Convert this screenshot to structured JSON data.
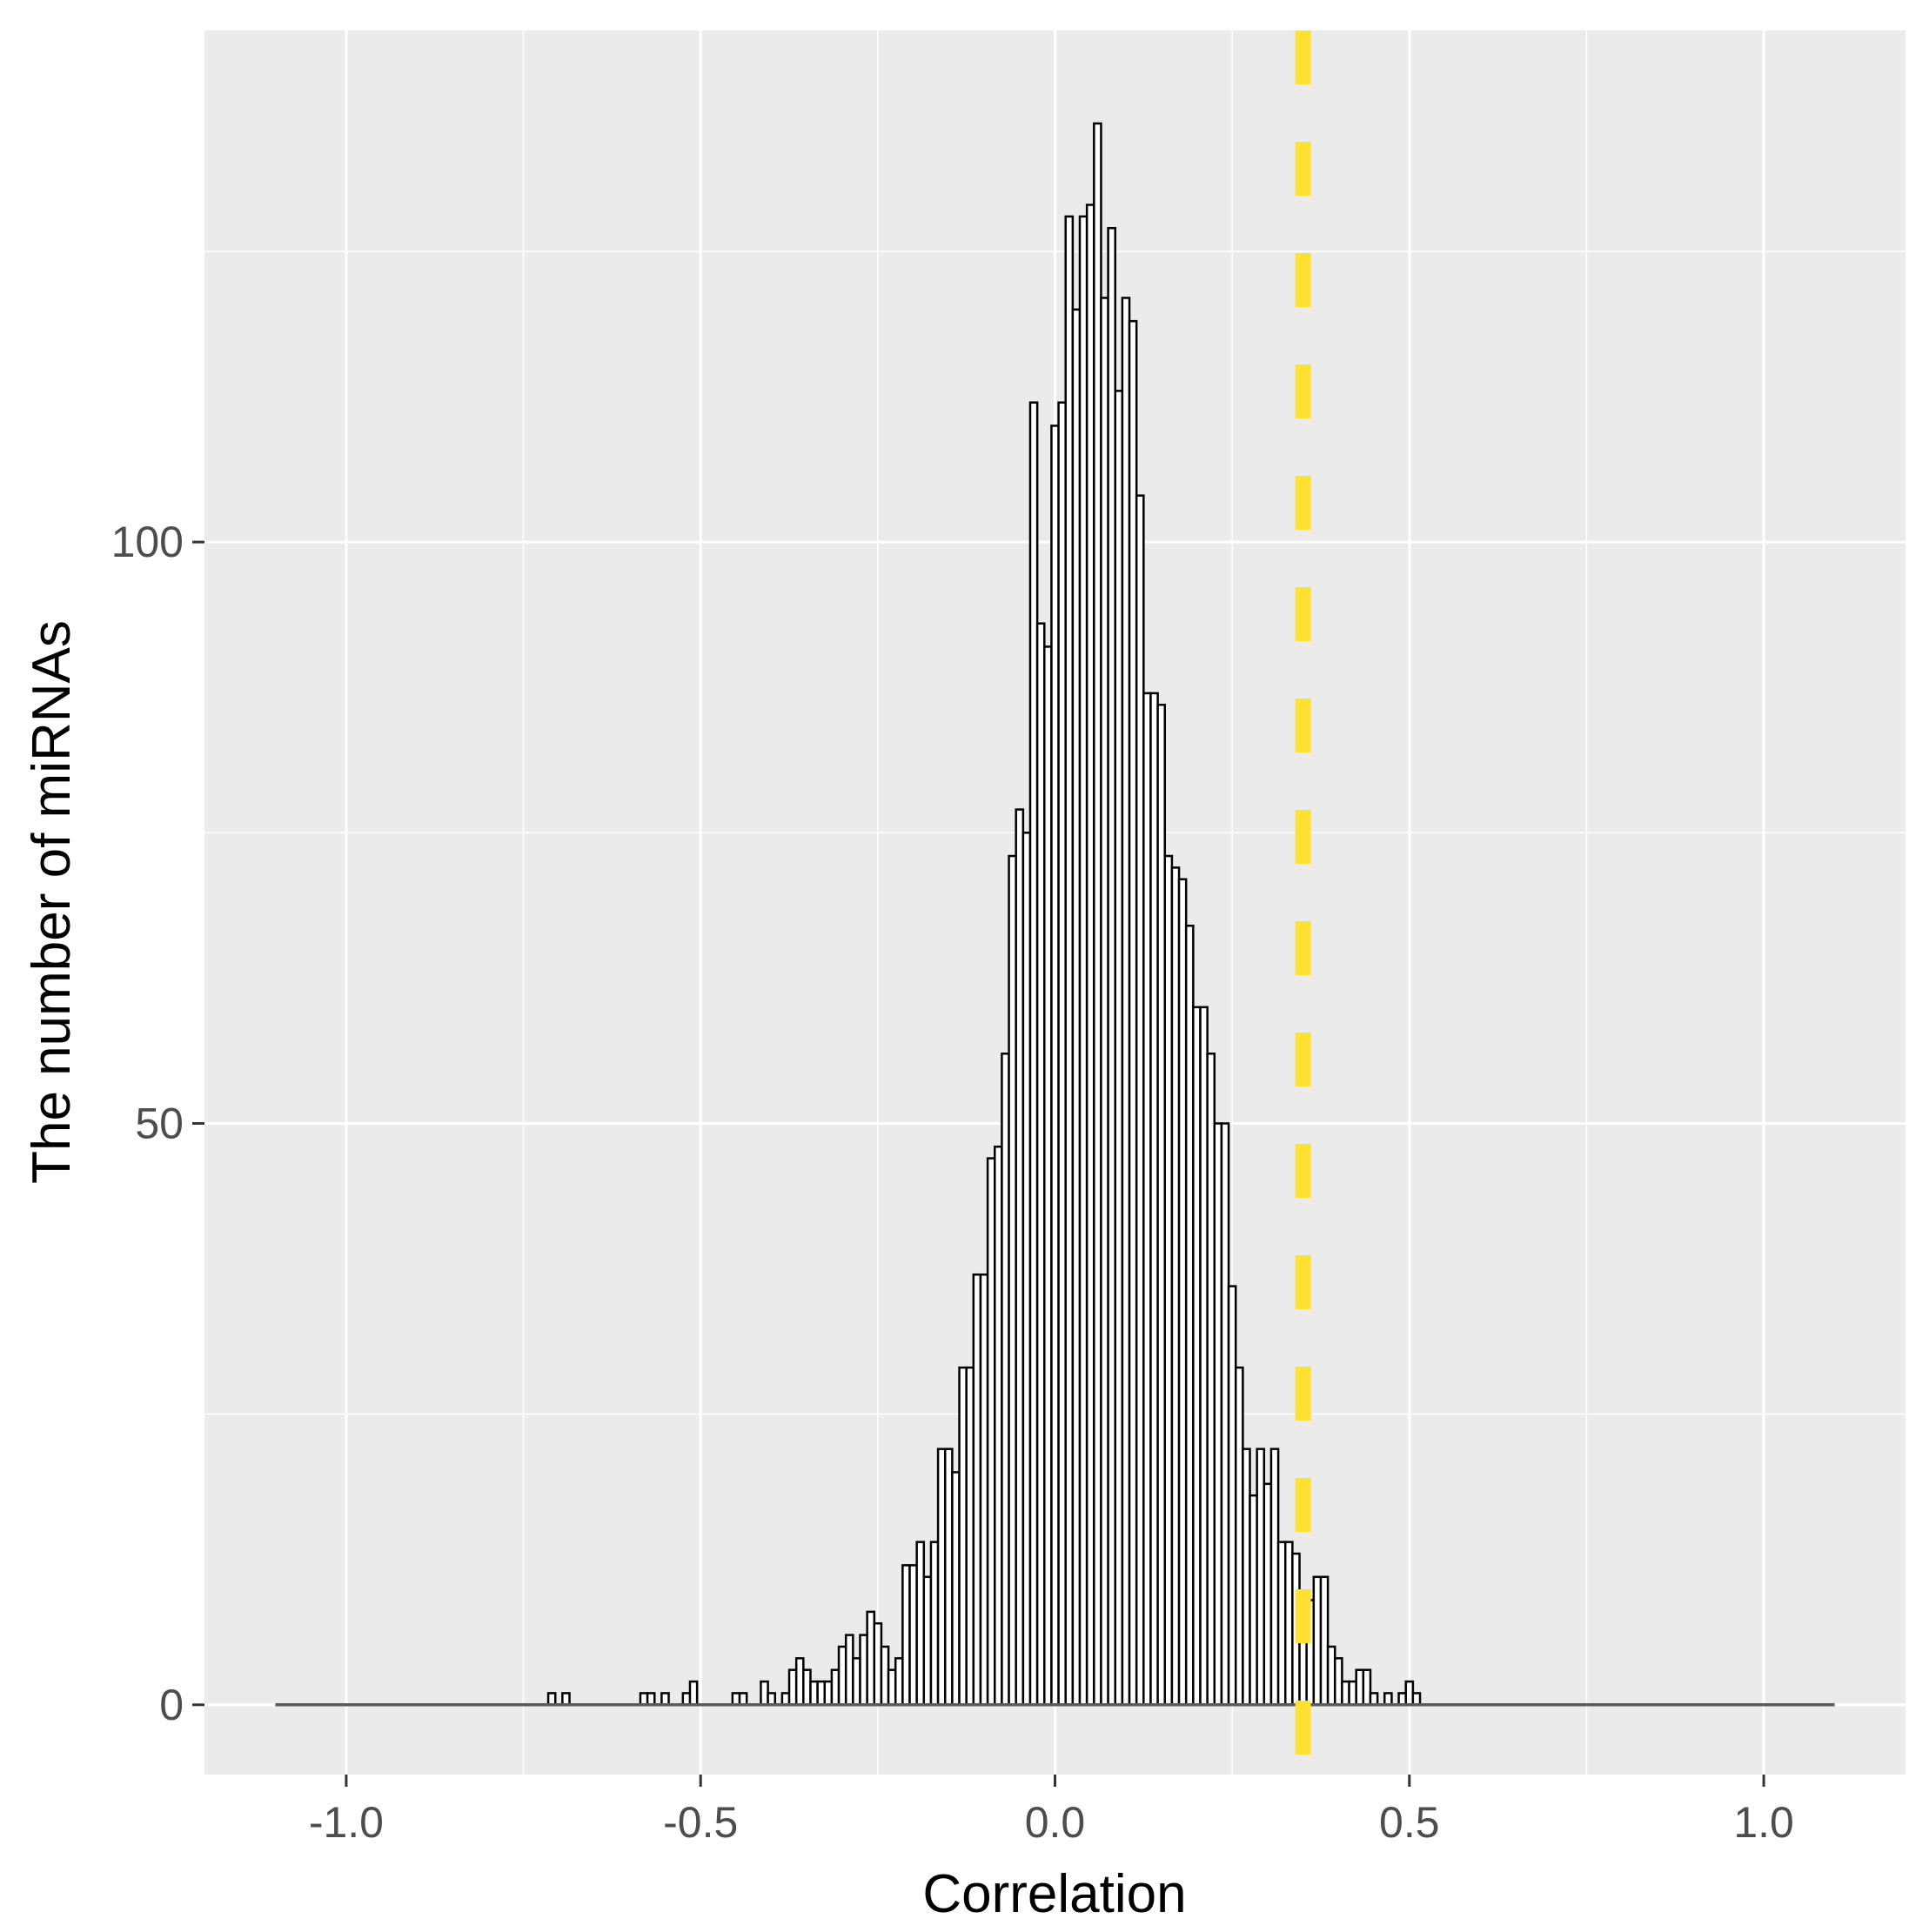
{
  "chart_data": {
    "type": "bar",
    "xlabel": "Correlation",
    "ylabel": "The number of miRNAs",
    "xlim": [
      -1.2,
      1.2
    ],
    "ylim": [
      -6,
      144
    ],
    "x_ticks": [
      -1.0,
      -0.5,
      0.0,
      0.5,
      1.0
    ],
    "x_tick_labels": [
      "-1.0",
      "-0.5",
      "0.0",
      "0.5",
      "1.0"
    ],
    "y_ticks": [
      0,
      50,
      100
    ],
    "y_tick_labels": [
      "0",
      "50",
      "100"
    ],
    "grid": true,
    "bin_width": 0.01,
    "bin_range": [
      -1.1,
      1.1
    ],
    "bins": [
      {
        "x": -0.71,
        "count": 1
      },
      {
        "x": -0.69,
        "count": 1
      },
      {
        "x": -0.58,
        "count": 1
      },
      {
        "x": -0.57,
        "count": 1
      },
      {
        "x": -0.56,
        "count": 0
      },
      {
        "x": -0.55,
        "count": 1
      },
      {
        "x": -0.52,
        "count": 1
      },
      {
        "x": -0.51,
        "count": 2
      },
      {
        "x": -0.45,
        "count": 1
      },
      {
        "x": -0.44,
        "count": 1
      },
      {
        "x": -0.41,
        "count": 2
      },
      {
        "x": -0.4,
        "count": 1
      },
      {
        "x": -0.38,
        "count": 1
      },
      {
        "x": -0.37,
        "count": 3
      },
      {
        "x": -0.36,
        "count": 4
      },
      {
        "x": -0.35,
        "count": 3
      },
      {
        "x": -0.34,
        "count": 2
      },
      {
        "x": -0.33,
        "count": 2
      },
      {
        "x": -0.32,
        "count": 2
      },
      {
        "x": -0.31,
        "count": 3
      },
      {
        "x": -0.3,
        "count": 5
      },
      {
        "x": -0.29,
        "count": 6
      },
      {
        "x": -0.28,
        "count": 4
      },
      {
        "x": -0.27,
        "count": 6
      },
      {
        "x": -0.26,
        "count": 8
      },
      {
        "x": -0.25,
        "count": 7
      },
      {
        "x": -0.24,
        "count": 5
      },
      {
        "x": -0.23,
        "count": 3
      },
      {
        "x": -0.22,
        "count": 4
      },
      {
        "x": -0.21,
        "count": 12
      },
      {
        "x": -0.2,
        "count": 12
      },
      {
        "x": -0.19,
        "count": 14
      },
      {
        "x": -0.18,
        "count": 11
      },
      {
        "x": -0.17,
        "count": 14
      },
      {
        "x": -0.16,
        "count": 22
      },
      {
        "x": -0.15,
        "count": 22
      },
      {
        "x": -0.14,
        "count": 20
      },
      {
        "x": -0.13,
        "count": 29
      },
      {
        "x": -0.12,
        "count": 29
      },
      {
        "x": -0.11,
        "count": 37
      },
      {
        "x": -0.1,
        "count": 37
      },
      {
        "x": -0.09,
        "count": 47
      },
      {
        "x": -0.08,
        "count": 48
      },
      {
        "x": -0.07,
        "count": 56
      },
      {
        "x": -0.06,
        "count": 73
      },
      {
        "x": -0.05,
        "count": 77
      },
      {
        "x": -0.04,
        "count": 75
      },
      {
        "x": -0.03,
        "count": 112
      },
      {
        "x": -0.02,
        "count": 93
      },
      {
        "x": -0.01,
        "count": 91
      },
      {
        "x": 0.0,
        "count": 110
      },
      {
        "x": 0.01,
        "count": 112
      },
      {
        "x": 0.02,
        "count": 128
      },
      {
        "x": 0.03,
        "count": 120
      },
      {
        "x": 0.04,
        "count": 128
      },
      {
        "x": 0.05,
        "count": 129
      },
      {
        "x": 0.06,
        "count": 136
      },
      {
        "x": 0.07,
        "count": 121
      },
      {
        "x": 0.08,
        "count": 127
      },
      {
        "x": 0.09,
        "count": 113
      },
      {
        "x": 0.1,
        "count": 121
      },
      {
        "x": 0.11,
        "count": 119
      },
      {
        "x": 0.12,
        "count": 104
      },
      {
        "x": 0.13,
        "count": 87
      },
      {
        "x": 0.14,
        "count": 87
      },
      {
        "x": 0.15,
        "count": 86
      },
      {
        "x": 0.16,
        "count": 73
      },
      {
        "x": 0.17,
        "count": 72
      },
      {
        "x": 0.18,
        "count": 71
      },
      {
        "x": 0.19,
        "count": 67
      },
      {
        "x": 0.2,
        "count": 60
      },
      {
        "x": 0.21,
        "count": 60
      },
      {
        "x": 0.22,
        "count": 56
      },
      {
        "x": 0.23,
        "count": 50
      },
      {
        "x": 0.24,
        "count": 50
      },
      {
        "x": 0.25,
        "count": 36
      },
      {
        "x": 0.26,
        "count": 29
      },
      {
        "x": 0.27,
        "count": 22
      },
      {
        "x": 0.28,
        "count": 18
      },
      {
        "x": 0.29,
        "count": 22
      },
      {
        "x": 0.3,
        "count": 19
      },
      {
        "x": 0.31,
        "count": 22
      },
      {
        "x": 0.32,
        "count": 14
      },
      {
        "x": 0.33,
        "count": 14
      },
      {
        "x": 0.34,
        "count": 13
      },
      {
        "x": 0.35,
        "count": 8
      },
      {
        "x": 0.36,
        "count": 9
      },
      {
        "x": 0.37,
        "count": 11
      },
      {
        "x": 0.38,
        "count": 11
      },
      {
        "x": 0.39,
        "count": 5
      },
      {
        "x": 0.4,
        "count": 4
      },
      {
        "x": 0.41,
        "count": 2
      },
      {
        "x": 0.42,
        "count": 2
      },
      {
        "x": 0.43,
        "count": 3
      },
      {
        "x": 0.44,
        "count": 3
      },
      {
        "x": 0.45,
        "count": 1
      },
      {
        "x": 0.47,
        "count": 1
      },
      {
        "x": 0.49,
        "count": 1
      },
      {
        "x": 0.5,
        "count": 2
      },
      {
        "x": 0.51,
        "count": 1
      }
    ],
    "vline": {
      "x": 0.35,
      "style": "dashed",
      "color": "#FFE033"
    },
    "colors": {
      "panel_background": "#EBEBEB",
      "grid": "#FFFFFF",
      "bar_fill": "#FFFFFF",
      "bar_outline": "#000000",
      "baseline": "#5a5a5a"
    }
  }
}
